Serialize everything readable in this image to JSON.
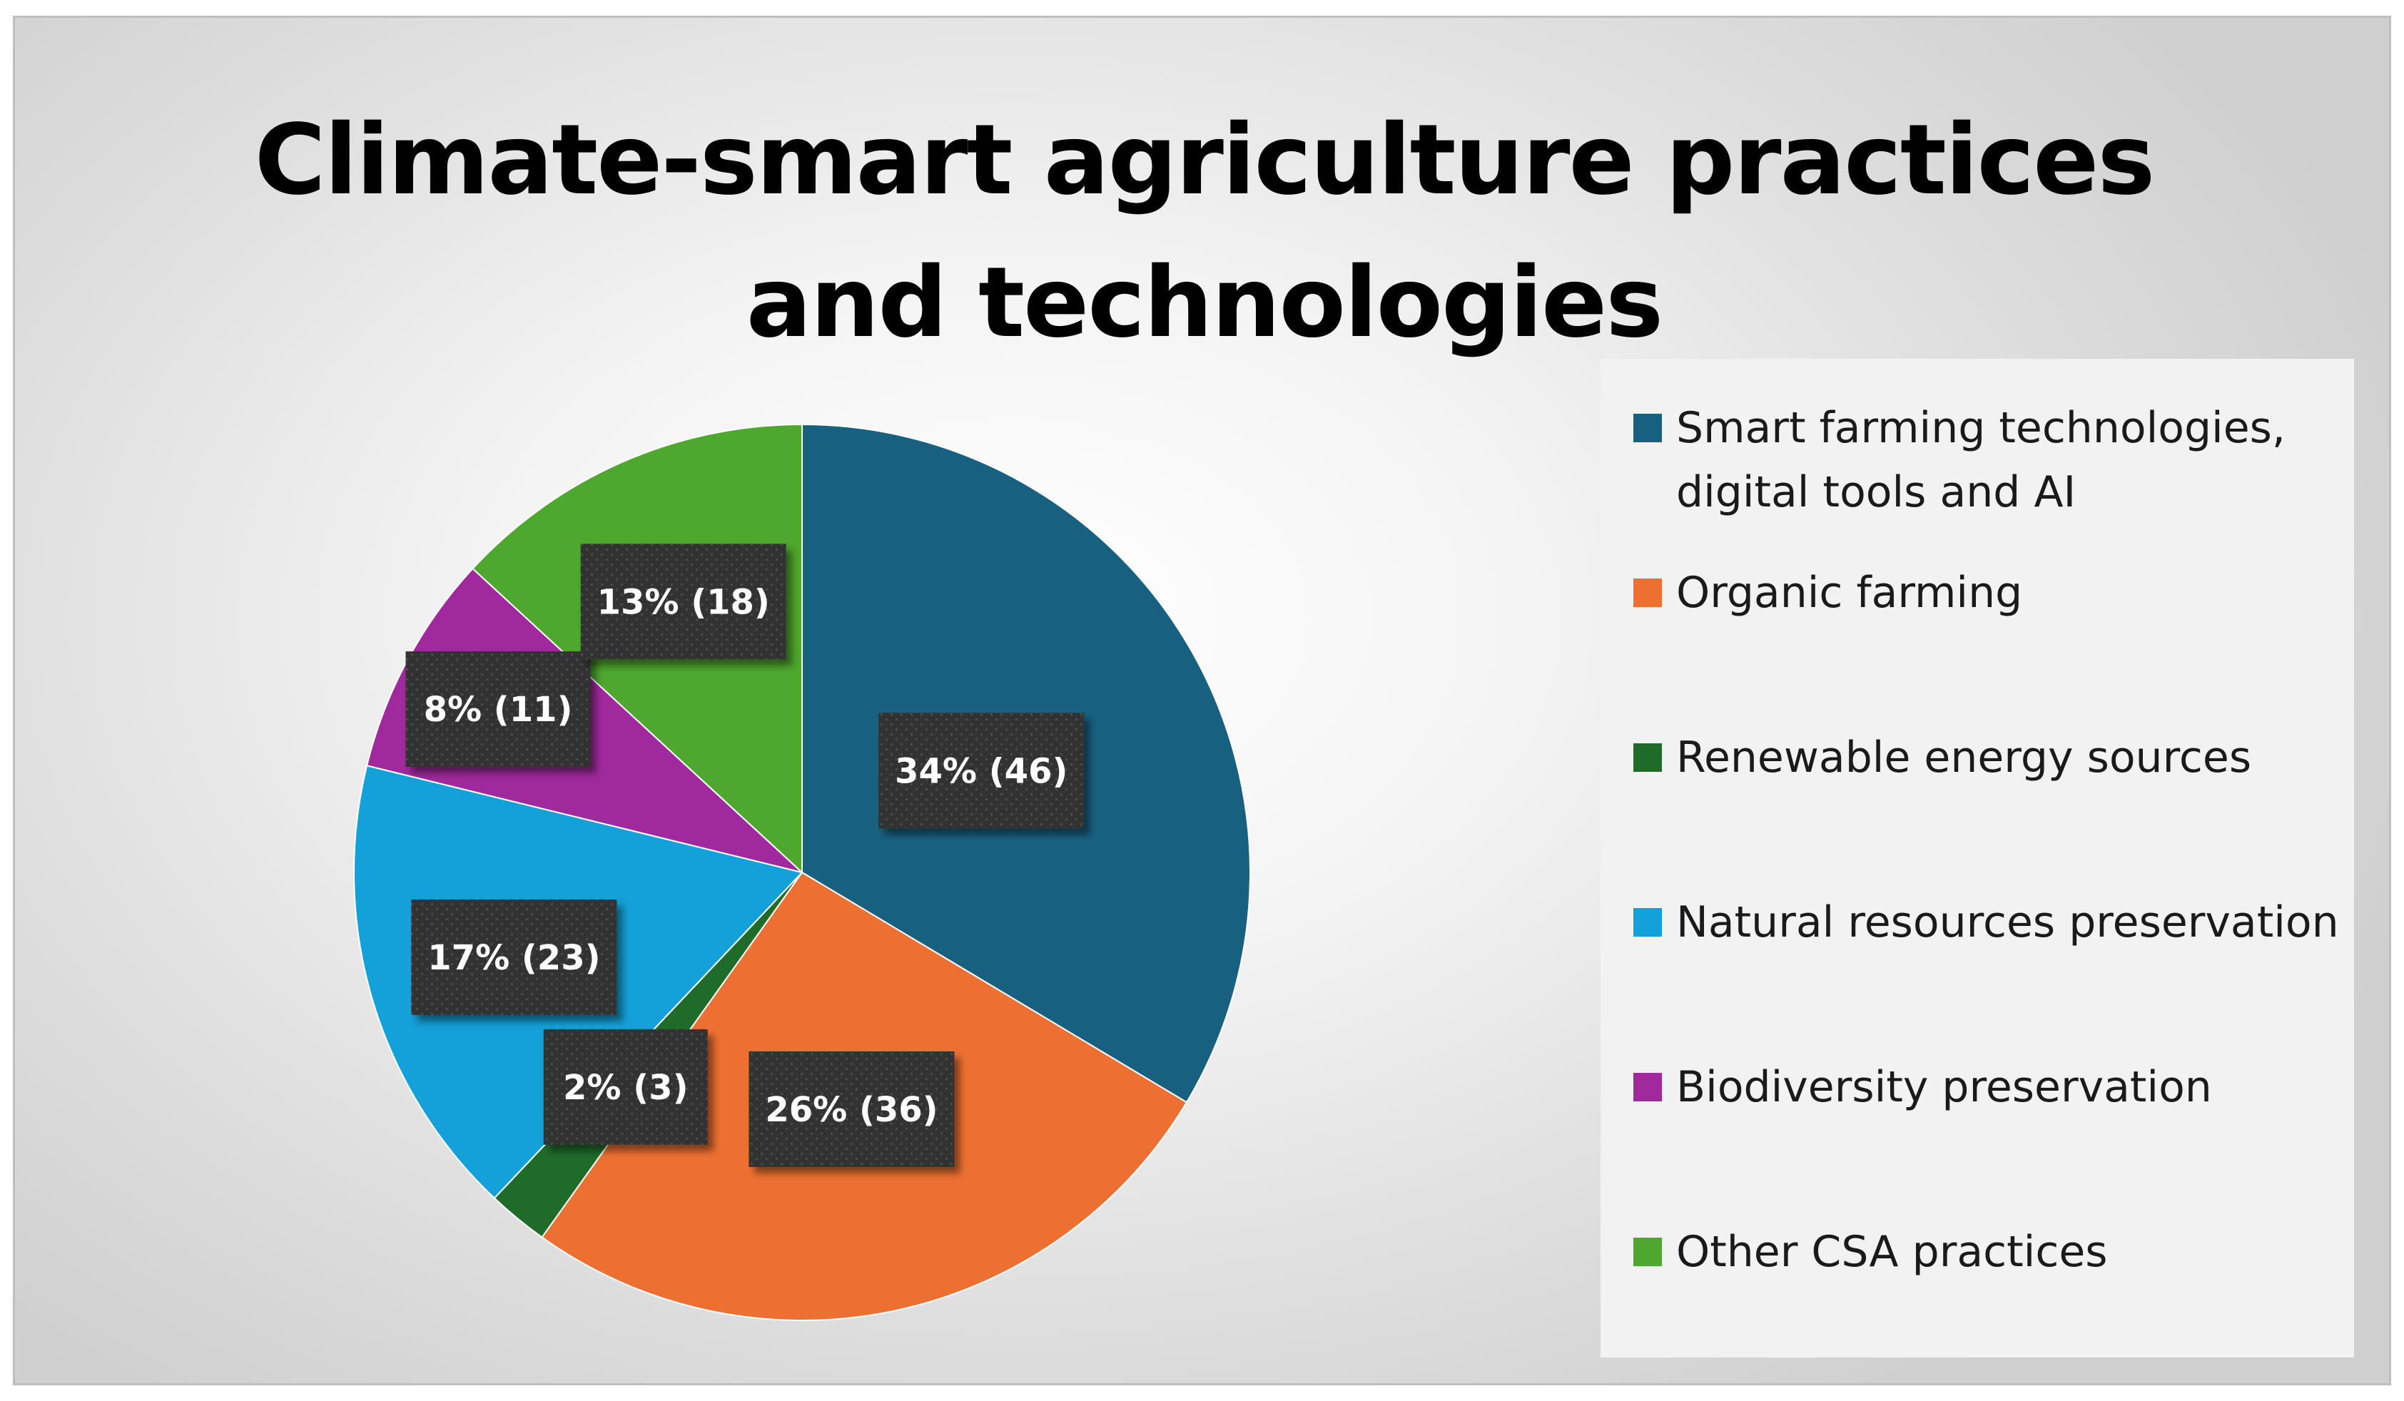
{
  "chart_data": {
    "type": "pie",
    "title": "Climate-smart agriculture practices and technologies",
    "title_lines": [
      "Climate-smart agriculture practices",
      "and technologies"
    ],
    "legend_position": "right",
    "slices": [
      {
        "name": "Smart farming technologies, digital tools and AI",
        "value": 46,
        "percent": 34,
        "label": "34% (46)",
        "color": "#17607f"
      },
      {
        "name": "Organic farming",
        "value": 36,
        "percent": 26,
        "label": "26% (36)",
        "color": "#ec7031"
      },
      {
        "name": "Renewable energy sources",
        "value": 3,
        "percent": 2,
        "label": "2% (3)",
        "color": "#1e6b2a"
      },
      {
        "name": "Natural resources preservation",
        "value": 23,
        "percent": 17,
        "label": "17% (23)",
        "color": "#14a0d8"
      },
      {
        "name": "Biodiversity preservation",
        "value": 11,
        "percent": 8,
        "label": "8% (11)",
        "color": "#a0299d"
      },
      {
        "name": "Other CSA practices",
        "value": 18,
        "percent": 13,
        "label": "13% (18)",
        "color": "#4ea72e"
      }
    ]
  },
  "legend": {
    "items": [
      {
        "label": "Smart farming technologies,\ndigital tools and AI",
        "color": "#17607f"
      },
      {
        "label": "Organic farming",
        "color": "#ec7031"
      },
      {
        "label": "Renewable energy sources",
        "color": "#1e6b2a"
      },
      {
        "label": "Natural resources preservation",
        "color": "#14a0d8"
      },
      {
        "label": "Biodiversity preservation",
        "color": "#a0299d"
      },
      {
        "label": "Other CSA practices",
        "color": "#4ea72e"
      }
    ]
  }
}
